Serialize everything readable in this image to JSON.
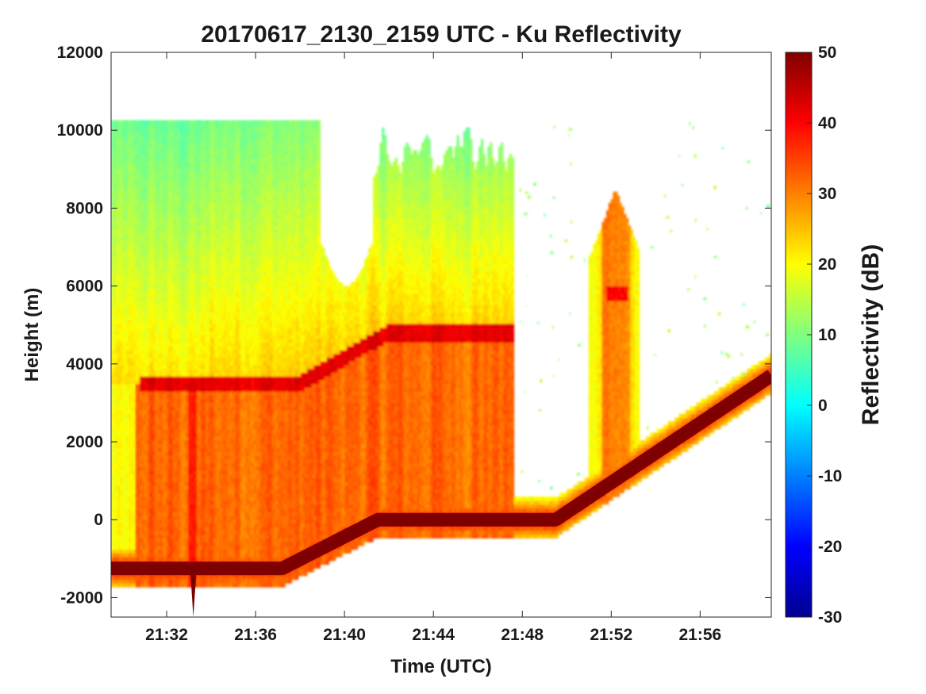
{
  "chart_data": {
    "type": "heatmap",
    "title": "20170617_2130_2159 UTC - Ku Reflectivity",
    "xlabel": "Time (UTC)",
    "ylabel": "Height (m)",
    "xlim_minutes": [
      29.5,
      59.2
    ],
    "ylim": [
      -2500,
      12000
    ],
    "x_ticks": [
      {
        "label": "21:32",
        "minute": 32
      },
      {
        "label": "21:36",
        "minute": 36
      },
      {
        "label": "21:40",
        "minute": 40
      },
      {
        "label": "21:44",
        "minute": 44
      },
      {
        "label": "21:48",
        "minute": 48
      },
      {
        "label": "21:52",
        "minute": 52
      },
      {
        "label": "21:56",
        "minute": 56
      }
    ],
    "y_ticks": [
      {
        "label": "-2000",
        "value": -2000
      },
      {
        "label": "0",
        "value": 0
      },
      {
        "label": "2000",
        "value": 2000
      },
      {
        "label": "4000",
        "value": 4000
      },
      {
        "label": "6000",
        "value": 6000
      },
      {
        "label": "8000",
        "value": 8000
      },
      {
        "label": "10000",
        "value": 10000
      },
      {
        "label": "12000",
        "value": 12000
      }
    ],
    "colorbar": {
      "label": "Reflectivity (dB)",
      "range": [
        -30,
        50
      ],
      "colormap": "jet",
      "ticks": [
        {
          "label": "50",
          "value": 50
        },
        {
          "label": "40",
          "value": 40
        },
        {
          "label": "30",
          "value": 30
        },
        {
          "label": "20",
          "value": 20
        },
        {
          "label": "10",
          "value": 10
        },
        {
          "label": "0",
          "value": 0
        },
        {
          "label": "-10",
          "value": -10
        },
        {
          "label": "-20",
          "value": -20
        },
        {
          "label": "-30",
          "value": -30
        }
      ]
    },
    "data_top_height_m": 10300,
    "features": {
      "surface_echo": {
        "reflectivity_db": 50,
        "path": [
          [
            29.5,
            -1250
          ],
          [
            33.0,
            -1250
          ],
          [
            37.2,
            -1250
          ],
          [
            41.5,
            0
          ],
          [
            49.5,
            0
          ],
          [
            59.2,
            3700
          ]
        ]
      },
      "melting_layer_bright_band": {
        "reflectivity_db": 40,
        "path": [
          [
            31.0,
            3500
          ],
          [
            38.0,
            3500
          ],
          [
            41.0,
            4500
          ],
          [
            42.0,
            4800
          ],
          [
            47.5,
            4800
          ]
        ]
      },
      "precipitation_segments": [
        {
          "start_minute": 29.5,
          "end_minute": 47.6,
          "top_m": 10300,
          "reflectivity_db": 30
        },
        {
          "start_minute": 51.0,
          "end_minute": 53.3,
          "top_m": 8500,
          "reflectivity_db": 25
        }
      ]
    }
  }
}
